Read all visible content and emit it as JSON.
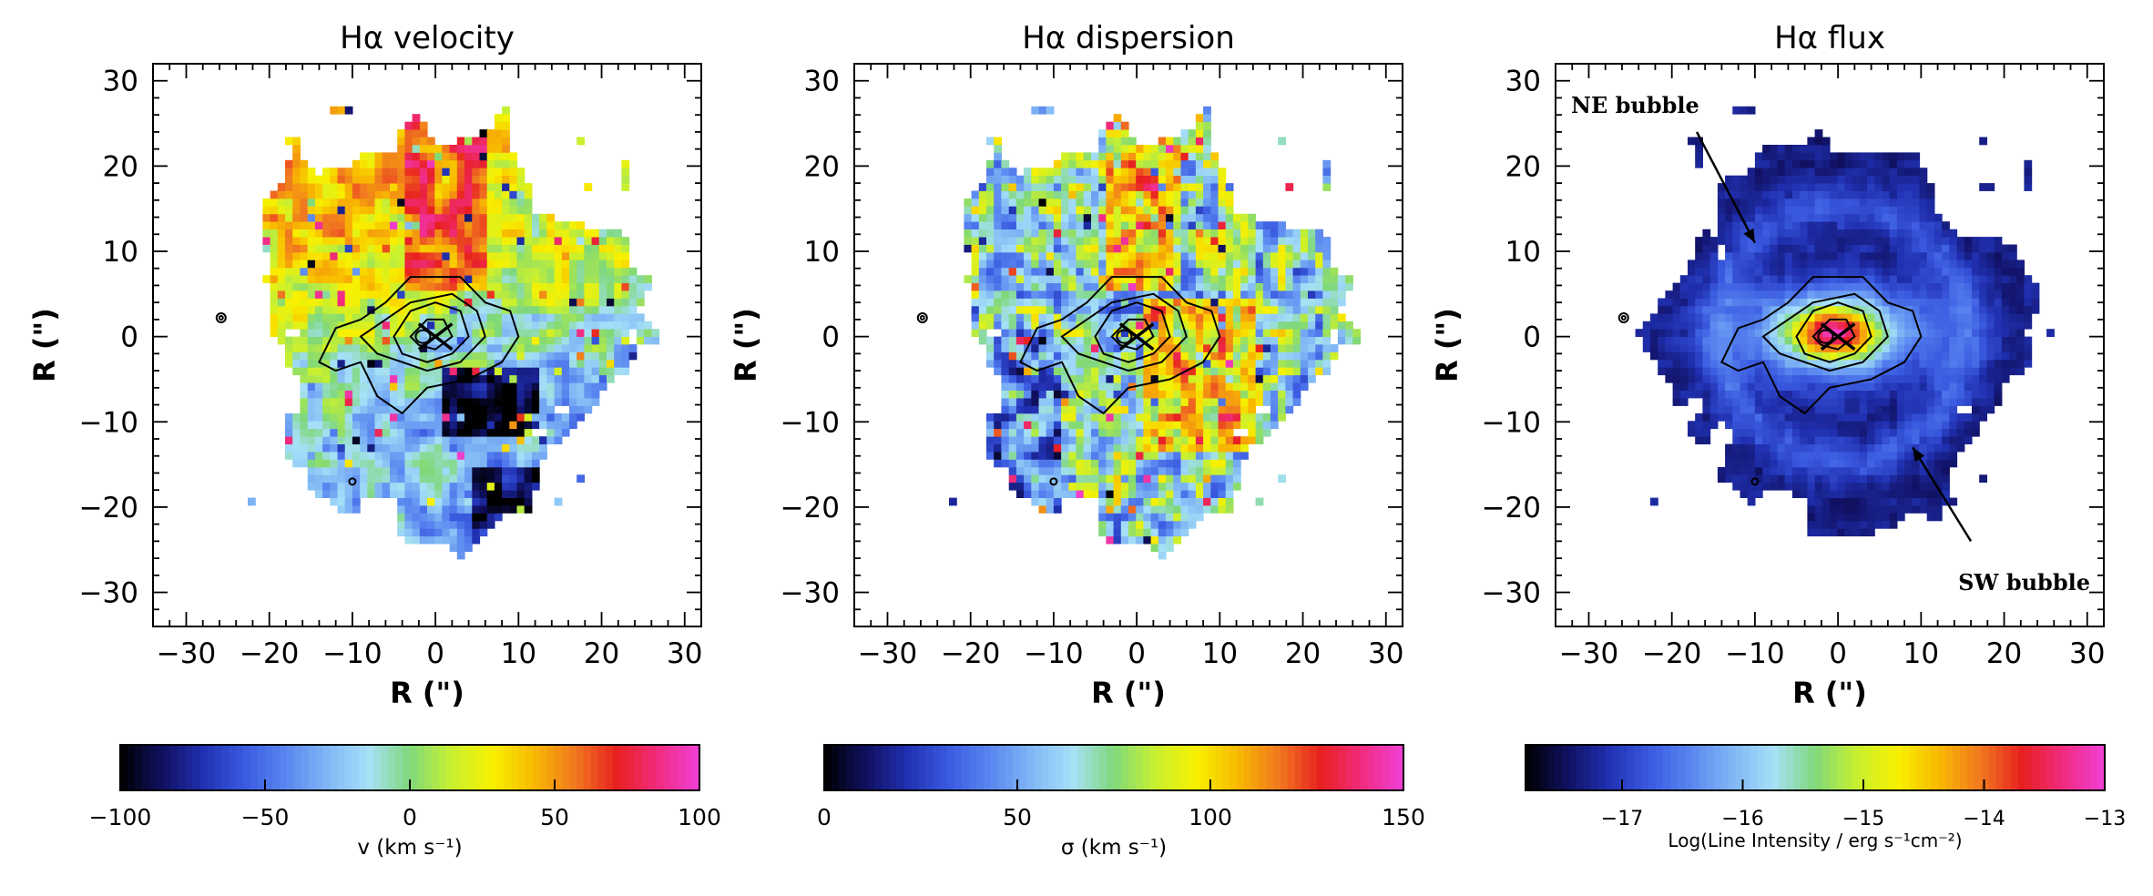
{
  "chart_data": [
    {
      "type": "heatmap",
      "title": "Hα velocity",
      "xlabel": "R (\")",
      "ylabel": "R (\")",
      "xlim": [
        -34,
        32
      ],
      "ylim": [
        -34,
        32
      ],
      "xticks": [
        -30,
        -20,
        -10,
        0,
        10,
        20,
        30
      ],
      "yticks": [
        -30,
        -20,
        -10,
        0,
        10,
        20,
        30
      ],
      "xtick_labels": [
        "−30",
        "−20",
        "−10",
        "0",
        "10",
        "20",
        "30"
      ],
      "ytick_labels": [
        "−30",
        "−20",
        "−10",
        "0",
        "10",
        "20",
        "30"
      ],
      "colorbar": {
        "label": "v (km s⁻¹)",
        "range": [
          -100,
          100
        ],
        "ticks": [
          -100,
          -50,
          0,
          50,
          100
        ],
        "tick_labels": [
          "−100",
          "−50",
          "0",
          "50",
          "100"
        ]
      },
      "annotations": []
    },
    {
      "type": "heatmap",
      "title": "Hα dispersion",
      "xlabel": "R (\")",
      "ylabel": "R (\")",
      "xlim": [
        -34,
        32
      ],
      "ylim": [
        -34,
        32
      ],
      "xticks": [
        -30,
        -20,
        -10,
        0,
        10,
        20,
        30
      ],
      "yticks": [
        -30,
        -20,
        -10,
        0,
        10,
        20,
        30
      ],
      "xtick_labels": [
        "−30",
        "−20",
        "−10",
        "0",
        "10",
        "20",
        "30"
      ],
      "ytick_labels": [
        "−30",
        "−20",
        "−10",
        "0",
        "10",
        "20",
        "30"
      ],
      "colorbar": {
        "label": "σ (km s⁻¹)",
        "range": [
          0,
          150
        ],
        "ticks": [
          0,
          50,
          100,
          150
        ],
        "tick_labels": [
          "0",
          "50",
          "100",
          "150"
        ]
      },
      "annotations": []
    },
    {
      "type": "heatmap",
      "title": "Hα flux",
      "xlabel": "R (\")",
      "ylabel": "R (\")",
      "xlim": [
        -34,
        32
      ],
      "ylim": [
        -34,
        32
      ],
      "xticks": [
        -30,
        -20,
        -10,
        0,
        10,
        20,
        30
      ],
      "yticks": [
        -30,
        -20,
        -10,
        0,
        10,
        20,
        30
      ],
      "xtick_labels": [
        "−30",
        "−20",
        "−10",
        "0",
        "10",
        "20",
        "30"
      ],
      "ytick_labels": [
        "−30",
        "−20",
        "−10",
        "0",
        "10",
        "20",
        "30"
      ],
      "colorbar": {
        "label": "Log(Line Intensity / erg s⁻¹cm⁻²)",
        "range": [
          -17.8,
          -13
        ],
        "ticks": [
          -17,
          -16,
          -15,
          -14,
          -13
        ],
        "tick_labels": [
          "−17",
          "−16",
          "−15",
          "−14",
          "−13"
        ]
      },
      "annotations": [
        {
          "text": "NE bubble",
          "from": [
            -17,
            24
          ],
          "to": [
            -10,
            11
          ]
        },
        {
          "text": "SW bubble",
          "from": [
            16,
            -24
          ],
          "to": [
            9,
            -13
          ]
        }
      ]
    }
  ],
  "colormap": [
    "#000000",
    "#101060",
    "#2030b0",
    "#3a5ae0",
    "#5a86f0",
    "#7fb6f4",
    "#a6e0f8",
    "#7fd87a",
    "#c8f030",
    "#f8f000",
    "#f8b800",
    "#f07820",
    "#e82020",
    "#f02c80",
    "#f040d8"
  ]
}
